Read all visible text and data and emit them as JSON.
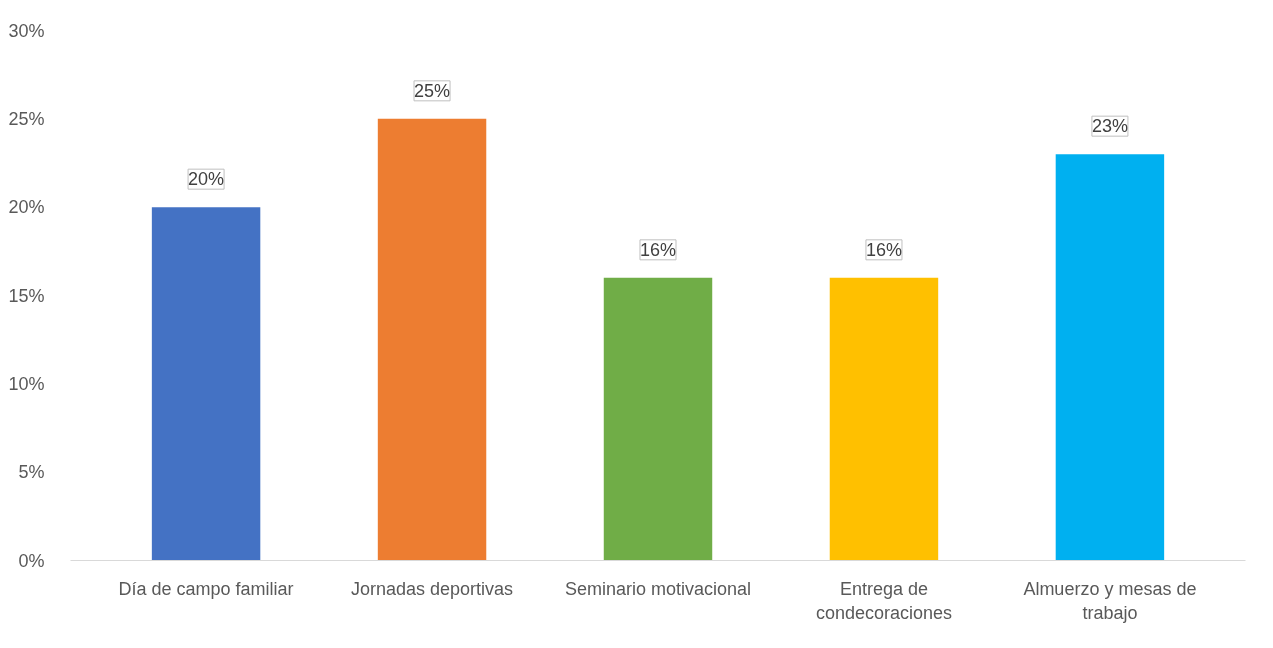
{
  "chart_data": {
    "type": "bar",
    "categories": [
      "Día de campo familiar",
      "Jornadas deportivas",
      "Seminario motivacional",
      "Entrega de condecoraciones",
      "Almuerzo y mesas de trabajo"
    ],
    "values": [
      20,
      25,
      16,
      16,
      23
    ],
    "colors": [
      "#4472c4",
      "#ed7d31",
      "#70ad47",
      "#ffc000",
      "#00b0f0"
    ],
    "value_labels": [
      "20%",
      "25%",
      "16%",
      "16%",
      "23%"
    ],
    "ylim": [
      0,
      30
    ],
    "yticks": [
      {
        "value": 0,
        "label": "0%"
      },
      {
        "value": 5,
        "label": "5%"
      },
      {
        "value": 10,
        "label": "10%"
      },
      {
        "value": 15,
        "label": "15%"
      },
      {
        "value": 20,
        "label": "20%"
      },
      {
        "value": 25,
        "label": "25%"
      },
      {
        "value": 30,
        "label": "30%"
      }
    ],
    "grid": false
  }
}
